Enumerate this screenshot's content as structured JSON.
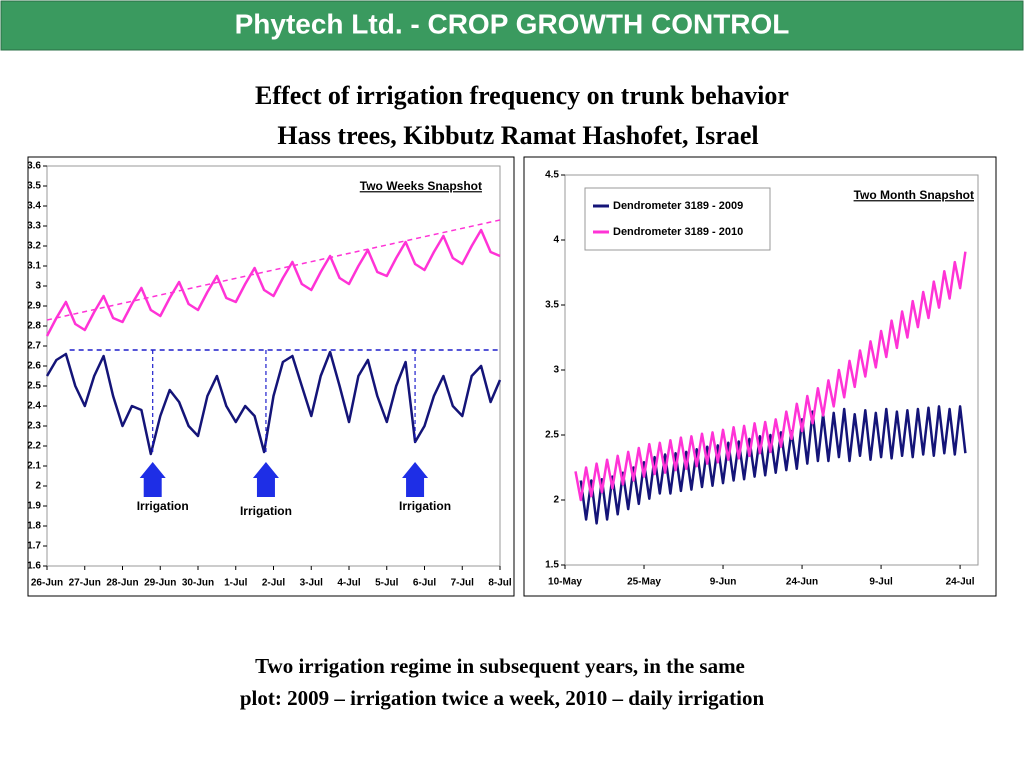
{
  "header": {
    "title": "Phytech Ltd. - CROP GROWTH CONTROL"
  },
  "heading": [
    "Effect of irrigation frequency on trunk behavior",
    "Hass trees, Kibbutz Ramat Hashofet, Israel"
  ],
  "caption": [
    "Two irrigation regime in subsequent years, in the same",
    "plot: 2009 – irrigation twice a week, 2010 – daily irrigation"
  ],
  "chart_data": [
    {
      "type": "line",
      "snapshot_label": "Two Weeks Snapshot",
      "annotations": [
        "Irrigation",
        "Irrigation",
        "Irrigation"
      ],
      "xlim": [
        0,
        12
      ],
      "ylim": [
        1.6,
        3.6
      ],
      "xticks": [
        {
          "value": 0,
          "label": "26-Jun"
        },
        {
          "value": 1,
          "label": "27-Jun"
        },
        {
          "value": 2,
          "label": "28-Jun"
        },
        {
          "value": 3,
          "label": "29-Jun"
        },
        {
          "value": 4,
          "label": "30-Jun"
        },
        {
          "value": 5,
          "label": "1-Jul"
        },
        {
          "value": 6,
          "label": "2-Jul"
        },
        {
          "value": 7,
          "label": "3-Jul"
        },
        {
          "value": 8,
          "label": "4-Jul"
        },
        {
          "value": 9,
          "label": "5-Jul"
        },
        {
          "value": 10,
          "label": "6-Jul"
        },
        {
          "value": 11,
          "label": "7-Jul"
        },
        {
          "value": 12,
          "label": "8-Jul"
        }
      ],
      "yticks": [
        1.6,
        1.7,
        1.8,
        1.9,
        2,
        2.1,
        2.2,
        2.3,
        2.4,
        2.5,
        2.6,
        2.7,
        2.8,
        2.9,
        3,
        3.1,
        3.2,
        3.3,
        3.4,
        3.5,
        3.6
      ],
      "x": [
        0,
        0.25,
        0.5,
        0.75,
        1,
        1.25,
        1.5,
        1.75,
        2,
        2.25,
        2.5,
        2.75,
        3,
        3.25,
        3.5,
        3.75,
        4,
        4.25,
        4.5,
        4.75,
        5,
        5.25,
        5.5,
        5.75,
        6,
        6.25,
        6.5,
        6.75,
        7,
        7.25,
        7.5,
        7.75,
        8,
        8.25,
        8.5,
        8.75,
        9,
        9.25,
        9.5,
        9.75,
        10,
        10.25,
        10.5,
        10.75,
        11,
        11.25,
        11.5,
        11.75,
        12
      ],
      "series": [
        {
          "color": "#ff33d6",
          "values": [
            2.75,
            2.84,
            2.92,
            2.81,
            2.78,
            2.87,
            2.95,
            2.84,
            2.82,
            2.91,
            2.99,
            2.88,
            2.85,
            2.94,
            3.02,
            2.91,
            2.88,
            2.97,
            3.05,
            2.94,
            2.92,
            3.01,
            3.09,
            2.98,
            2.95,
            3.04,
            3.12,
            3.01,
            2.98,
            3.07,
            3.15,
            3.04,
            3.01,
            3.1,
            3.18,
            3.07,
            3.05,
            3.14,
            3.22,
            3.11,
            3.08,
            3.17,
            3.25,
            3.14,
            3.11,
            3.2,
            3.28,
            3.17,
            3.15
          ]
        },
        {
          "color": "#141478",
          "values": [
            2.55,
            2.63,
            2.66,
            2.5,
            2.4,
            2.55,
            2.65,
            2.45,
            2.3,
            2.4,
            2.38,
            2.16,
            2.35,
            2.48,
            2.42,
            2.3,
            2.25,
            2.45,
            2.55,
            2.4,
            2.32,
            2.4,
            2.35,
            2.17,
            2.45,
            2.62,
            2.65,
            2.5,
            2.35,
            2.55,
            2.67,
            2.5,
            2.32,
            2.55,
            2.63,
            2.45,
            2.32,
            2.5,
            2.62,
            2.22,
            2.3,
            2.45,
            2.55,
            2.4,
            2.35,
            2.55,
            2.6,
            2.42,
            2.53
          ]
        }
      ],
      "trend_lines": [
        {
          "color": "#ff33d6",
          "x": [
            0,
            12
          ],
          "values": [
            2.83,
            3.33
          ]
        },
        {
          "color": "#1e1ecc",
          "x": [
            0.6,
            12
          ],
          "values": [
            2.68,
            2.68
          ]
        }
      ]
    },
    {
      "type": "line",
      "snapshot_label": "Two Month Snapshot",
      "legend": "top-left",
      "xlim": [
        0,
        78.4
      ],
      "ylim": [
        1.5,
        4.5
      ],
      "xticks": [
        {
          "value": 0,
          "label": "10-May"
        },
        {
          "value": 15,
          "label": "25-May"
        },
        {
          "value": 30,
          "label": "9-Jun"
        },
        {
          "value": 45,
          "label": "24-Jun"
        },
        {
          "value": 60,
          "label": "9-Jul"
        },
        {
          "value": 75,
          "label": "24-Jul"
        }
      ],
      "yticks": [
        1.5,
        2,
        2.5,
        3,
        3.5,
        4,
        4.5
      ],
      "x": [
        2,
        3,
        4,
        5,
        6,
        7,
        8,
        9,
        10,
        11,
        12,
        13,
        14,
        15,
        16,
        17,
        18,
        19,
        20,
        21,
        22,
        23,
        24,
        25,
        26,
        27,
        28,
        29,
        30,
        31,
        32,
        33,
        34,
        35,
        36,
        37,
        38,
        39,
        40,
        41,
        42,
        43,
        44,
        45,
        46,
        47,
        48,
        49,
        50,
        51,
        52,
        53,
        54,
        55,
        56,
        57,
        58,
        59,
        60,
        61,
        62,
        63,
        64,
        65,
        66,
        67,
        68,
        69,
        70,
        71,
        72,
        73,
        74,
        75,
        76
      ],
      "series": [
        {
          "name": "Dendrometer 3189 - 2009",
          "color": "#141478",
          "values": [
            null,
            2.15,
            1.85,
            2.15,
            1.82,
            2.16,
            1.85,
            2.18,
            1.89,
            2.21,
            1.93,
            2.25,
            1.97,
            2.29,
            2.01,
            2.33,
            2.05,
            2.35,
            2.05,
            2.36,
            2.07,
            2.37,
            2.08,
            2.39,
            2.1,
            2.41,
            2.11,
            2.42,
            2.13,
            2.44,
            2.15,
            2.45,
            2.16,
            2.47,
            2.18,
            2.49,
            2.19,
            2.5,
            2.21,
            2.52,
            2.23,
            2.53,
            2.24,
            2.62,
            2.28,
            2.68,
            2.3,
            2.66,
            2.3,
            2.67,
            2.33,
            2.7,
            2.3,
            2.66,
            2.34,
            2.69,
            2.31,
            2.67,
            2.33,
            2.7,
            2.32,
            2.68,
            2.34,
            2.69,
            2.33,
            2.7,
            2.35,
            2.71,
            2.34,
            2.72,
            2.36,
            2.7,
            2.35,
            2.72,
            2.36
          ]
        },
        {
          "name": "Dendrometer 3189 - 2010",
          "color": "#ff33d6",
          "values": [
            2.22,
            2.0,
            2.25,
            2.03,
            2.28,
            2.06,
            2.31,
            2.09,
            2.34,
            2.12,
            2.37,
            2.15,
            2.4,
            2.18,
            2.43,
            2.2,
            2.44,
            2.21,
            2.46,
            2.23,
            2.48,
            2.24,
            2.49,
            2.26,
            2.51,
            2.28,
            2.52,
            2.29,
            2.54,
            2.31,
            2.56,
            2.32,
            2.57,
            2.34,
            2.59,
            2.36,
            2.6,
            2.37,
            2.62,
            2.41,
            2.68,
            2.47,
            2.74,
            2.53,
            2.8,
            2.59,
            2.86,
            2.65,
            2.92,
            2.72,
            3.0,
            2.79,
            3.07,
            2.87,
            3.15,
            2.95,
            3.22,
            3.02,
            3.3,
            3.1,
            3.38,
            3.17,
            3.45,
            3.25,
            3.53,
            3.33,
            3.6,
            3.4,
            3.68,
            3.48,
            3.76,
            3.55,
            3.83,
            3.63,
            3.91
          ]
        }
      ]
    }
  ]
}
